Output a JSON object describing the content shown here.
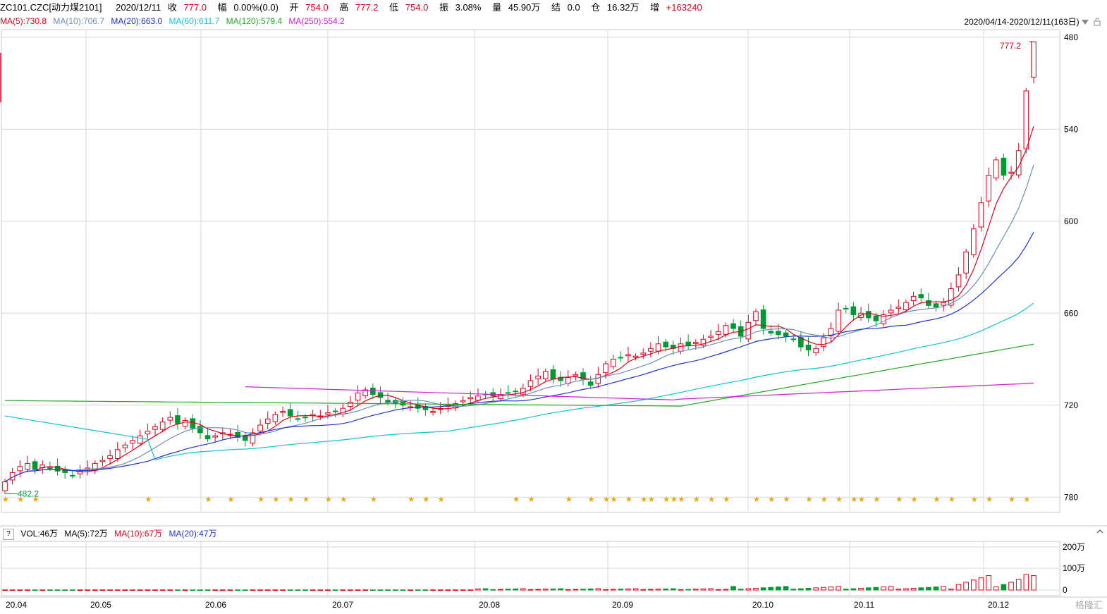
{
  "header": {
    "symbol": "ZC101.CZC[动力煤2101]",
    "date": "2020/12/11",
    "close_label": "收",
    "close": "777.0",
    "change_pct_label": "幅",
    "change_pct": "0.00%(0.0)",
    "open_label": "开",
    "open": "754.0",
    "high_label": "高",
    "high": "777.2",
    "low_label": "低",
    "low": "754.0",
    "amplitude_label": "振",
    "amplitude": "3.08%",
    "volume_label": "量",
    "volume": "45.90万",
    "settle_label": "结",
    "settle": "0.0",
    "oi_label": "仓",
    "oi": "16.32万",
    "oi_change_label": "增",
    "oi_change": "+163240"
  },
  "ma_legend": [
    {
      "label": "MA(5):730.8",
      "color": "#e0001b"
    },
    {
      "label": "MA(10):706.7",
      "color": "#6e8fb8"
    },
    {
      "label": "MA(20):663.0",
      "color": "#2233cc"
    },
    {
      "label": "MA(60):611.7",
      "color": "#13c2d8"
    },
    {
      "label": "MA(120):579.4",
      "color": "#22aa22"
    },
    {
      "label": "MA(250):554.2",
      "color": "#cc22cc"
    }
  ],
  "range_label": "2020/04/14-2020/12/11(163日)",
  "volume_legend": {
    "help": "?",
    "vol": "VOL:46万",
    "ma5": "MA(5):72万",
    "ma10": "MA(10):67万",
    "ma20": "MA(20):47万"
  },
  "volume_axis": [
    "200万",
    "100万",
    "0"
  ],
  "price_axis": [
    "780",
    "720",
    "660",
    "600",
    "540",
    "480"
  ],
  "annotations": {
    "high_label": "777.2",
    "low_label": "482.2"
  },
  "colors": {
    "up": "#e0001b",
    "down": "#009933",
    "star": "#f0a000",
    "grid": "#d8d8d8"
  },
  "chart_data": {
    "type": "candlestick",
    "title": "ZC101.CZC[动力煤2101]",
    "x_labels": [
      "20.04",
      "20.05",
      "20.06",
      "20.07",
      "20.08",
      "20.09",
      "20.10",
      "20.11",
      "20.12"
    ],
    "ylim": [
      470,
      785
    ],
    "yticks": [
      480,
      540,
      600,
      660,
      720,
      780
    ],
    "volume_ylim": [
      0,
      200
    ],
    "close_series": [
      490,
      496,
      500,
      502,
      498,
      501,
      499,
      497,
      496,
      494,
      497,
      499,
      502,
      504,
      507,
      511,
      514,
      517,
      520,
      523,
      526,
      529,
      532,
      528,
      530,
      525,
      522,
      518,
      520,
      522,
      521,
      519,
      517,
      522,
      527,
      531,
      534,
      536,
      533,
      531,
      532,
      534,
      533,
      535,
      536,
      538,
      542,
      548,
      550,
      547,
      545,
      542,
      541,
      540,
      539,
      538,
      537,
      536,
      538,
      540,
      541,
      543,
      545,
      546,
      547,
      546,
      547,
      548,
      549,
      551,
      556,
      559,
      562,
      557,
      556,
      558,
      560,
      557,
      553,
      560,
      567,
      570,
      571,
      573,
      572,
      574,
      577,
      580,
      578,
      577,
      580,
      579,
      581,
      583,
      585,
      588,
      592,
      590,
      585,
      594,
      601,
      590,
      587,
      586,
      585,
      583,
      578,
      576,
      577,
      584,
      590,
      602,
      603,
      599,
      600,
      597,
      595,
      599,
      602,
      604,
      607,
      611,
      610,
      605,
      604,
      607,
      616,
      625,
      640,
      655,
      672,
      690,
      700,
      690,
      692,
      706,
      745,
      777
    ],
    "ma_series": [
      {
        "name": "MA(5)",
        "last": 730.8
      },
      {
        "name": "MA(10)",
        "last": 706.7
      },
      {
        "name": "MA(20)",
        "last": 663.0
      },
      {
        "name": "MA(60)",
        "last": 611.7
      },
      {
        "name": "MA(120)",
        "last": 579.4
      },
      {
        "name": "MA(250)",
        "last": 554.2
      }
    ],
    "volume_last": 46,
    "volume_ma": {
      "MA(5)": 72,
      "MA(10)": 67,
      "MA(20)": 47
    }
  }
}
